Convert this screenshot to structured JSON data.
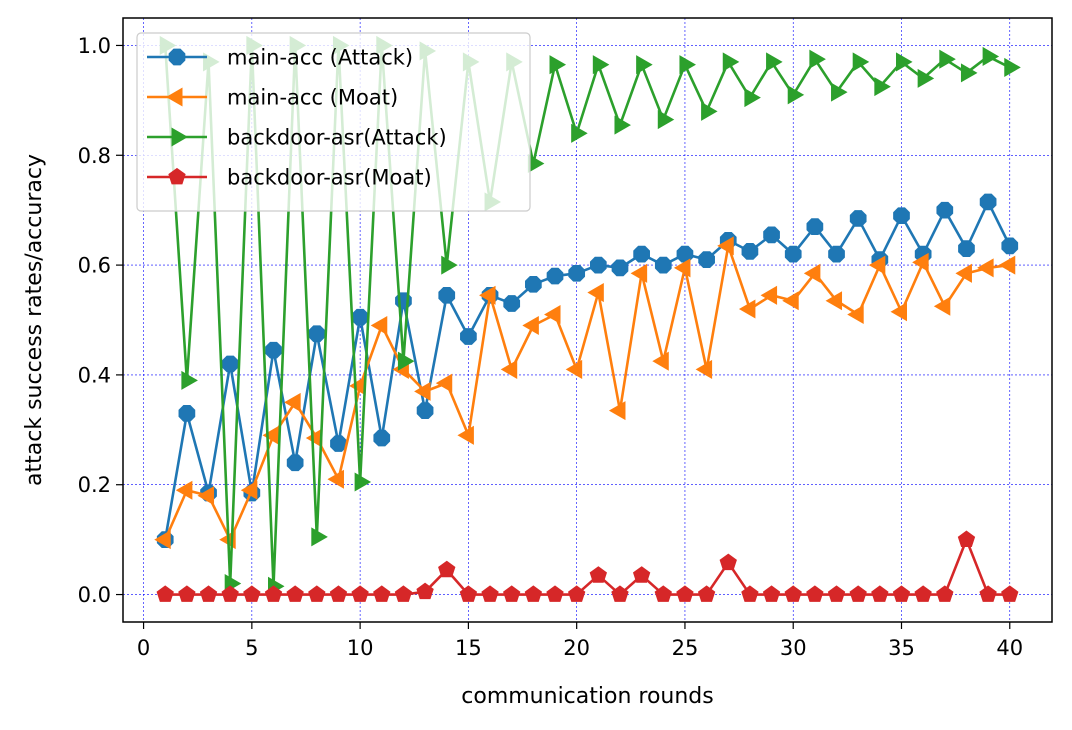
{
  "chart_data": {
    "type": "line",
    "title": "",
    "xlabel": "communication rounds",
    "ylabel": "attack success rates/accuracy",
    "xlim": [
      -0.95,
      41.95
    ],
    "ylim": [
      -0.05,
      1.05
    ],
    "xticks": [
      0,
      5,
      10,
      15,
      20,
      25,
      30,
      35,
      40
    ],
    "yticks": [
      0.0,
      0.2,
      0.4,
      0.6,
      0.8,
      1.0
    ],
    "xtick_labels": [
      "0",
      "5",
      "10",
      "15",
      "20",
      "25",
      "30",
      "35",
      "40"
    ],
    "ytick_labels": [
      "0.0",
      "0.2",
      "0.4",
      "0.6",
      "0.8",
      "1.0"
    ],
    "grid": true,
    "grid_color": "#0000ff",
    "legend_position": "upper-left",
    "x": [
      1,
      2,
      3,
      4,
      5,
      6,
      7,
      8,
      9,
      10,
      11,
      12,
      13,
      14,
      15,
      16,
      17,
      18,
      19,
      20,
      21,
      22,
      23,
      24,
      25,
      26,
      27,
      28,
      29,
      30,
      31,
      32,
      33,
      34,
      35,
      36,
      37,
      38,
      39,
      40
    ],
    "series": [
      {
        "name": "main-acc (Attack)",
        "color": "#1f77b4",
        "marker": "octagon",
        "values": [
          0.1,
          0.33,
          0.185,
          0.42,
          0.185,
          0.445,
          0.24,
          0.475,
          0.275,
          0.505,
          0.285,
          0.535,
          0.335,
          0.545,
          0.47,
          0.545,
          0.53,
          0.565,
          0.58,
          0.585,
          0.6,
          0.595,
          0.62,
          0.6,
          0.62,
          0.61,
          0.645,
          0.625,
          0.655,
          0.62,
          0.67,
          0.62,
          0.685,
          0.61,
          0.69,
          0.62,
          0.7,
          0.63,
          0.715,
          0.635
        ]
      },
      {
        "name": "main-acc (Moat)",
        "color": "#ff7f0e",
        "marker": "triangle-left",
        "values": [
          0.1,
          0.19,
          0.18,
          0.1,
          0.19,
          0.29,
          0.35,
          0.285,
          0.21,
          0.38,
          0.49,
          0.41,
          0.37,
          0.385,
          0.29,
          0.545,
          0.41,
          0.49,
          0.51,
          0.41,
          0.55,
          0.335,
          0.585,
          0.425,
          0.595,
          0.41,
          0.635,
          0.52,
          0.545,
          0.535,
          0.585,
          0.535,
          0.51,
          0.6,
          0.515,
          0.605,
          0.525,
          0.585,
          0.595,
          0.6
        ]
      },
      {
        "name": "backdoor-asr(Attack)",
        "color": "#2ca02c",
        "marker": "triangle-right",
        "values": [
          1.0,
          0.39,
          0.97,
          0.02,
          1.0,
          0.015,
          1.0,
          0.105,
          1.0,
          0.205,
          1.0,
          0.425,
          0.99,
          0.6,
          0.97,
          0.715,
          0.97,
          0.785,
          0.965,
          0.84,
          0.965,
          0.855,
          0.965,
          0.865,
          0.965,
          0.88,
          0.97,
          0.905,
          0.97,
          0.91,
          0.975,
          0.915,
          0.97,
          0.925,
          0.97,
          0.94,
          0.975,
          0.95,
          0.98,
          0.96
        ]
      },
      {
        "name": "backdoor-asr(Moat)",
        "color": "#d62728",
        "marker": "pentagon",
        "values": [
          0,
          0,
          0,
          0,
          0,
          0,
          0,
          0,
          0,
          0,
          0,
          0,
          0.005,
          0.045,
          0,
          0,
          0,
          0,
          0,
          0,
          0.035,
          0,
          0.035,
          0,
          0,
          0,
          0.058,
          0,
          0,
          0,
          0,
          0,
          0,
          0,
          0,
          0,
          0,
          0.1,
          0,
          0
        ]
      }
    ]
  }
}
